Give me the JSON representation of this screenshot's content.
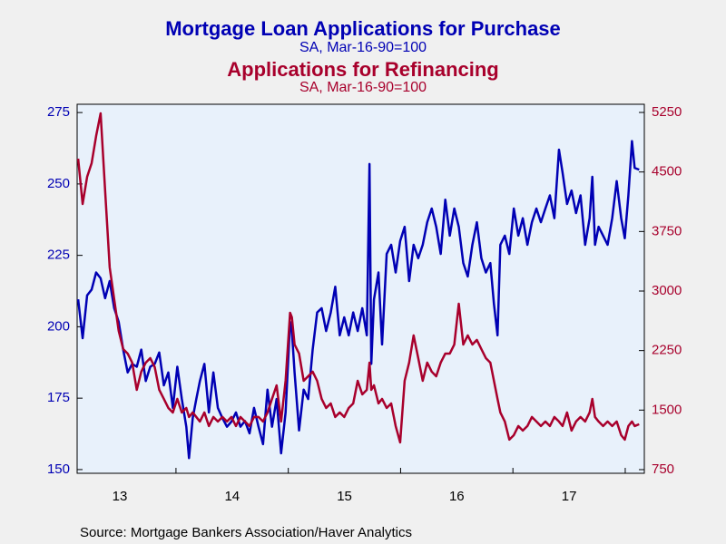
{
  "chart_data": {
    "type": "line",
    "source": "Source:  Mortgage Bankers Association/Haver Analytics",
    "xlim": [
      2013.12,
      2018.17
    ],
    "xticks": [
      {
        "value": 2013.5,
        "label": "13"
      },
      {
        "value": 2014.5,
        "label": "14"
      },
      {
        "value": 2015.5,
        "label": "15"
      },
      {
        "value": 2016.5,
        "label": "16"
      },
      {
        "value": 2017.5,
        "label": "17"
      }
    ],
    "ylim": [
      148.7,
      277.9
    ],
    "yticks": [
      150,
      175,
      200,
      225,
      250,
      275
    ],
    "y2lim": [
      704,
      5353
    ],
    "y2ticks": [
      750,
      1500,
      2250,
      3000,
      3750,
      4500,
      5250
    ],
    "x": [
      2013.129,
      2013.169,
      2013.209,
      2013.249,
      2013.289,
      2013.329,
      2013.369,
      2013.41,
      2013.45,
      2013.49,
      2013.53,
      2013.57,
      2013.61,
      2013.651,
      2013.691,
      2013.731,
      2013.771,
      2013.811,
      2013.851,
      2013.892,
      2013.932,
      2013.972,
      2014.012,
      2014.052,
      2014.092,
      2014.116,
      2014.149,
      2014.181,
      2014.213,
      2014.253,
      2014.293,
      2014.333,
      2014.373,
      2014.414,
      2014.454,
      2014.494,
      2014.534,
      2014.574,
      2014.614,
      2014.655,
      2014.695,
      2014.735,
      2014.775,
      2014.815,
      2014.855,
      2014.896,
      2014.936,
      2014.976,
      2015.016,
      2015.032,
      2015.056,
      2015.096,
      2015.137,
      2015.177,
      2015.217,
      2015.257,
      2015.297,
      2015.337,
      2015.378,
      2015.418,
      2015.458,
      2015.498,
      2015.538,
      2015.578,
      2015.618,
      2015.659,
      2015.699,
      2015.723,
      2015.739,
      2015.763,
      2015.803,
      2015.835,
      2015.876,
      2015.916,
      2015.956,
      2015.996,
      2016.036,
      2016.076,
      2016.116,
      2016.157,
      2016.197,
      2016.237,
      2016.277,
      2016.317,
      2016.357,
      2016.398,
      2016.438,
      2016.478,
      2016.518,
      2016.558,
      2016.598,
      2016.639,
      2016.679,
      2016.719,
      2016.759,
      2016.799,
      2016.831,
      2016.863,
      2016.888,
      2016.928,
      2016.968,
      2017.008,
      2017.048,
      2017.088,
      2017.129,
      2017.169,
      2017.209,
      2017.249,
      2017.289,
      2017.329,
      2017.369,
      2017.41,
      2017.442,
      2017.482,
      2017.522,
      2017.562,
      2017.602,
      2017.643,
      2017.683,
      2017.707,
      2017.731,
      2017.763,
      2017.803,
      2017.843,
      2017.884,
      2017.924,
      2017.964,
      2017.996,
      2018.028,
      2018.06,
      2018.084,
      2018.124
    ],
    "series": [
      {
        "name": "Mortgage Loan Applications for Purchase",
        "note": "SA, Mar-16-90=100",
        "color": "#0000b4",
        "axis": "y",
        "values": [
          209.6,
          196,
          211,
          213,
          219,
          217,
          210,
          216,
          206.5,
          201.7,
          192,
          184,
          187,
          186,
          192,
          181,
          186,
          187,
          191,
          179.5,
          184,
          171.6,
          186,
          174.7,
          165,
          154,
          168,
          174.7,
          181,
          187,
          170,
          184,
          171.6,
          168,
          165,
          166.8,
          170,
          165,
          167,
          162.7,
          171.6,
          165,
          158.9,
          178,
          165,
          174.7,
          155.7,
          170,
          201.7,
          198.5,
          184,
          163.7,
          178,
          174.7,
          192,
          205,
          206.5,
          198.5,
          205,
          214,
          197,
          203.3,
          197,
          205,
          198.5,
          206.5,
          197,
          257,
          187,
          209.6,
          219,
          193.8,
          225.5,
          228.7,
          219,
          230,
          235,
          216,
          228.7,
          224,
          228.7,
          236.6,
          241.4,
          235,
          225.5,
          244.5,
          231.9,
          241.4,
          235,
          222.3,
          217.6,
          228.7,
          236.6,
          224,
          219,
          222.3,
          208,
          197,
          228.7,
          231.9,
          225.5,
          241.4,
          231.9,
          238,
          228.7,
          236.6,
          241.4,
          236.6,
          241.4,
          246,
          238,
          262,
          254,
          243,
          247.7,
          239.8,
          246,
          228.7,
          238,
          252.5,
          228.7,
          235,
          231.9,
          228.7,
          238,
          251,
          238,
          231,
          246,
          265,
          255.6,
          255
        ]
      },
      {
        "name": "Applications for Refinancing",
        "note": "SA, Mar-16-90=100",
        "color": "#a8002c",
        "axis": "y2",
        "values": [
          4668,
          4097,
          4439,
          4611,
          4953,
          5239,
          4268,
          3297,
          2897,
          2498,
          2269,
          2212,
          2098,
          1755,
          1984,
          2098,
          2155,
          2041,
          1755,
          1641,
          1527,
          1470,
          1641,
          1470,
          1527,
          1413,
          1470,
          1413,
          1356,
          1470,
          1299,
          1413,
          1356,
          1413,
          1356,
          1413,
          1299,
          1413,
          1356,
          1299,
          1413,
          1413,
          1356,
          1470,
          1641,
          1812,
          1356,
          1869,
          2726,
          2669,
          2326,
          2212,
          1869,
          1926,
          1984,
          1869,
          1641,
          1527,
          1584,
          1413,
          1470,
          1413,
          1527,
          1584,
          1869,
          1698,
          1755,
          2098,
          1755,
          1812,
          1584,
          1641,
          1527,
          1584,
          1299,
          1093,
          1869,
          2098,
          2441,
          2155,
          1869,
          2098,
          1984,
          1926,
          2098,
          2212,
          2212,
          2326,
          2840,
          2326,
          2441,
          2326,
          2384,
          2269,
          2155,
          2098,
          1869,
          1641,
          1470,
          1356,
          1128,
          1184,
          1299,
          1242,
          1299,
          1413,
          1356,
          1299,
          1356,
          1299,
          1413,
          1356,
          1299,
          1470,
          1242,
          1356,
          1413,
          1356,
          1470,
          1641,
          1413,
          1356,
          1299,
          1356,
          1299,
          1356,
          1184,
          1128,
          1299,
          1356,
          1299,
          1322
        ]
      }
    ]
  }
}
